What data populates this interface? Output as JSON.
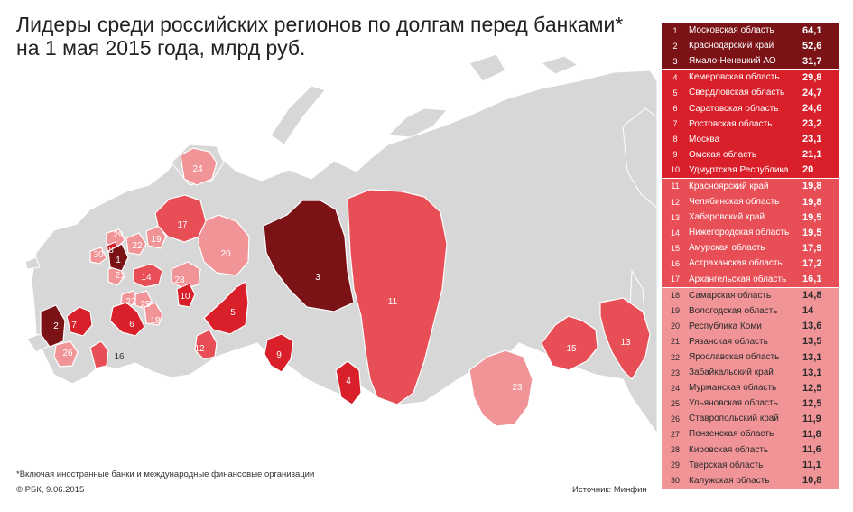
{
  "title_line1": "Лидеры среди российских регионов по долгам перед банками*",
  "title_line2": "на 1 мая 2015 года, млрд руб.",
  "footnote": "*Включая иностранные банки и международные финансовые организации",
  "copyright": "© РБК, 9.06.2015",
  "source_label": "Источник:",
  "source_name": "Минфин",
  "colors": {
    "tier1": "#7a1216",
    "tier2": "#d81f2a",
    "tier3": "#e84e55",
    "tier4": "#f19497",
    "background_regions": "#d7d7d7"
  },
  "chart_data": {
    "type": "table",
    "title": "Лидеры среди российских регионов по долгам перед банками* на 1 мая 2015 года, млрд руб.",
    "rows": [
      {
        "rank": "1",
        "region": "Московская область",
        "value": "64,1",
        "tier": "t1"
      },
      {
        "rank": "2",
        "region": "Краснодарский край",
        "value": "52,6",
        "tier": "t1"
      },
      {
        "rank": "3",
        "region": "Ямало-Ненецкий АО",
        "value": "31,7",
        "tier": "t1"
      },
      {
        "rank": "4",
        "region": "Кемеровская область",
        "value": "29,8",
        "tier": "t2"
      },
      {
        "rank": "5",
        "region": "Свердловская область",
        "value": "24,7",
        "tier": "t2"
      },
      {
        "rank": "6",
        "region": "Саратовская область",
        "value": "24,6",
        "tier": "t2"
      },
      {
        "rank": "7",
        "region": "Ростовская область",
        "value": "23,2",
        "tier": "t2"
      },
      {
        "rank": "8",
        "region": "Москва",
        "value": "23,1",
        "tier": "t2"
      },
      {
        "rank": "9",
        "region": "Омская область",
        "value": "21,1",
        "tier": "t2"
      },
      {
        "rank": "10",
        "region": "Удмуртская Республика",
        "value": "20",
        "tier": "t2"
      },
      {
        "rank": "11",
        "region": "Красноярский край",
        "value": "19,8",
        "tier": "t3"
      },
      {
        "rank": "12",
        "region": "Челябинская область",
        "value": "19,8",
        "tier": "t3"
      },
      {
        "rank": "13",
        "region": "Хабаровский край",
        "value": "19,5",
        "tier": "t3"
      },
      {
        "rank": "14",
        "region": "Нижегородская область",
        "value": "19,5",
        "tier": "t3"
      },
      {
        "rank": "15",
        "region": "Амурская область",
        "value": "17,9",
        "tier": "t3"
      },
      {
        "rank": "16",
        "region": "Астраханская область",
        "value": "17,2",
        "tier": "t3"
      },
      {
        "rank": "17",
        "region": "Архангельская область",
        "value": "16,1",
        "tier": "t3"
      },
      {
        "rank": "18",
        "region": "Самарская область",
        "value": "14,8",
        "tier": "t4"
      },
      {
        "rank": "19",
        "region": "Вологодская область",
        "value": "14",
        "tier": "t4"
      },
      {
        "rank": "20",
        "region": "Республика Коми",
        "value": "13,6",
        "tier": "t4"
      },
      {
        "rank": "21",
        "region": "Рязанская область",
        "value": "13,5",
        "tier": "t4"
      },
      {
        "rank": "22",
        "region": "Ярославская область",
        "value": "13,1",
        "tier": "t4"
      },
      {
        "rank": "23",
        "region": "Забайкальский край",
        "value": "13,1",
        "tier": "t4"
      },
      {
        "rank": "24",
        "region": "Мурманская область",
        "value": "12,5",
        "tier": "t4"
      },
      {
        "rank": "25",
        "region": "Ульяновская область",
        "value": "12,5",
        "tier": "t4"
      },
      {
        "rank": "26",
        "region": "Ставропольский край",
        "value": "11,9",
        "tier": "t4"
      },
      {
        "rank": "27",
        "region": "Пензенская область",
        "value": "11,8",
        "tier": "t4"
      },
      {
        "rank": "28",
        "region": "Кировская область",
        "value": "11,6",
        "tier": "t4"
      },
      {
        "rank": "29",
        "region": "Тверская область",
        "value": "11,1",
        "tier": "t4"
      },
      {
        "rank": "30",
        "region": "Калужская область",
        "value": "10,8",
        "tier": "t4"
      }
    ]
  }
}
